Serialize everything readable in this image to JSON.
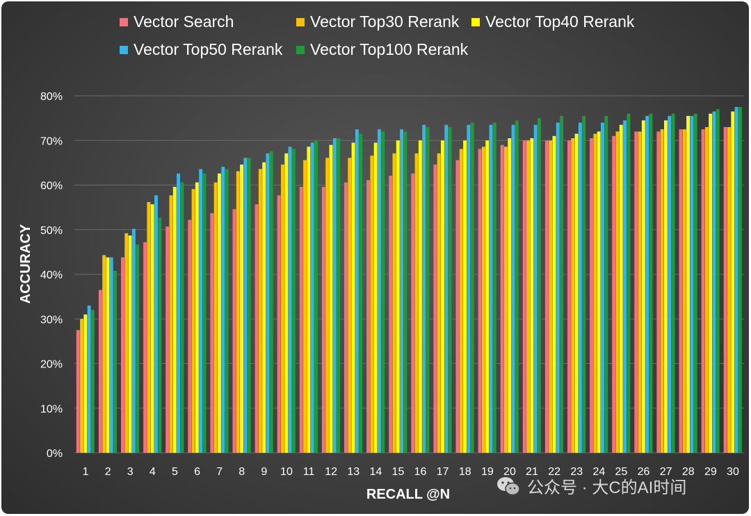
{
  "chart_data": {
    "type": "bar",
    "title": "",
    "xlabel": "RECALL @N",
    "ylabel": "ACCURACY",
    "ylim": [
      0,
      0.8
    ],
    "yticks": [
      "0%",
      "10%",
      "20%",
      "30%",
      "40%",
      "50%",
      "60%",
      "70%",
      "80%"
    ],
    "grid": true,
    "legend_position": "top",
    "categories": [
      "1",
      "2",
      "3",
      "4",
      "5",
      "6",
      "7",
      "8",
      "9",
      "10",
      "11",
      "12",
      "13",
      "14",
      "15",
      "16",
      "17",
      "18",
      "19",
      "20",
      "21",
      "22",
      "23",
      "24",
      "25",
      "26",
      "27",
      "28",
      "29",
      "30"
    ],
    "series": [
      {
        "name": "Vector Search",
        "color": "#f4727f",
        "values": [
          0.275,
          0.365,
          0.438,
          0.472,
          0.507,
          0.522,
          0.537,
          0.546,
          0.557,
          0.577,
          0.596,
          0.596,
          0.606,
          0.611,
          0.621,
          0.626,
          0.646,
          0.656,
          0.681,
          0.69,
          0.7,
          0.7,
          0.7,
          0.705,
          0.71,
          0.72,
          0.72,
          0.725,
          0.725,
          0.73
        ]
      },
      {
        "name": "Vector Top30 Rerank",
        "color": "#ffc000",
        "values": [
          0.3,
          0.443,
          0.492,
          0.562,
          0.577,
          0.591,
          0.606,
          0.631,
          0.636,
          0.646,
          0.656,
          0.661,
          0.661,
          0.666,
          0.671,
          0.671,
          0.671,
          0.681,
          0.686,
          0.686,
          0.7,
          0.7,
          0.705,
          0.715,
          0.72,
          0.72,
          0.725,
          0.725,
          0.73,
          0.73
        ]
      },
      {
        "name": "Vector Top40 Rerank",
        "color": "#ffff00",
        "values": [
          0.31,
          0.438,
          0.487,
          0.557,
          0.596,
          0.606,
          0.626,
          0.646,
          0.651,
          0.671,
          0.686,
          0.69,
          0.695,
          0.695,
          0.7,
          0.7,
          0.7,
          0.7,
          0.7,
          0.705,
          0.705,
          0.71,
          0.715,
          0.72,
          0.735,
          0.745,
          0.745,
          0.755,
          0.76,
          0.765
        ]
      },
      {
        "name": "Vector Top50 Rerank",
        "color": "#38b5e8",
        "values": [
          0.33,
          0.438,
          0.502,
          0.577,
          0.626,
          0.636,
          0.641,
          0.661,
          0.671,
          0.686,
          0.695,
          0.705,
          0.725,
          0.725,
          0.725,
          0.735,
          0.735,
          0.735,
          0.735,
          0.735,
          0.735,
          0.74,
          0.74,
          0.74,
          0.745,
          0.755,
          0.755,
          0.755,
          0.765,
          0.775
        ]
      },
      {
        "name": "Vector Top100 Rerank",
        "color": "#1e9c3c",
        "values": [
          0.32,
          0.408,
          0.467,
          0.527,
          0.606,
          0.626,
          0.636,
          0.661,
          0.676,
          0.681,
          0.7,
          0.705,
          0.715,
          0.72,
          0.72,
          0.73,
          0.73,
          0.74,
          0.74,
          0.745,
          0.75,
          0.755,
          0.755,
          0.755,
          0.76,
          0.76,
          0.76,
          0.76,
          0.77,
          0.775
        ]
      }
    ]
  },
  "watermark": {
    "text": "公众号 · 大C的AI时间",
    "icon": "wechat-icon"
  }
}
